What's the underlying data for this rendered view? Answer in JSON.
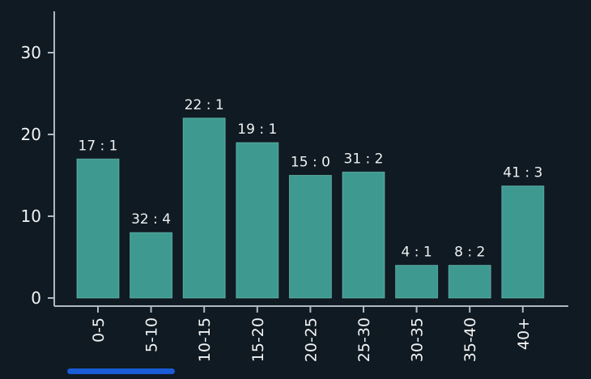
{
  "chart_data": {
    "type": "bar",
    "categories": [
      "0-5",
      "5-10",
      "10-15",
      "15-20",
      "20-25",
      "25-30",
      "30-35",
      "35-40",
      "40+"
    ],
    "values": [
      17,
      8,
      22,
      19,
      15,
      15.4,
      4,
      4,
      13.7
    ],
    "data_labels": [
      "17 : 1",
      "32 : 4",
      "22 : 1",
      "19 : 1",
      "15 : 0",
      "31 : 2",
      "4 : 1",
      "8 : 2",
      "41 : 3"
    ],
    "ylim": [
      0,
      35
    ],
    "yticks": [
      0,
      10,
      20,
      30
    ],
    "ytick_labels": [
      "0",
      "10",
      "20",
      "30"
    ],
    "xlabel": "",
    "ylabel": "",
    "title": "",
    "grid": false,
    "selected_category": "5-10",
    "colors": {
      "background": "#101a22",
      "bar": "#3e9a91",
      "axis": "#aeb9c2",
      "text": "#f2f4f5",
      "selection": "#1a5bd6"
    }
  }
}
